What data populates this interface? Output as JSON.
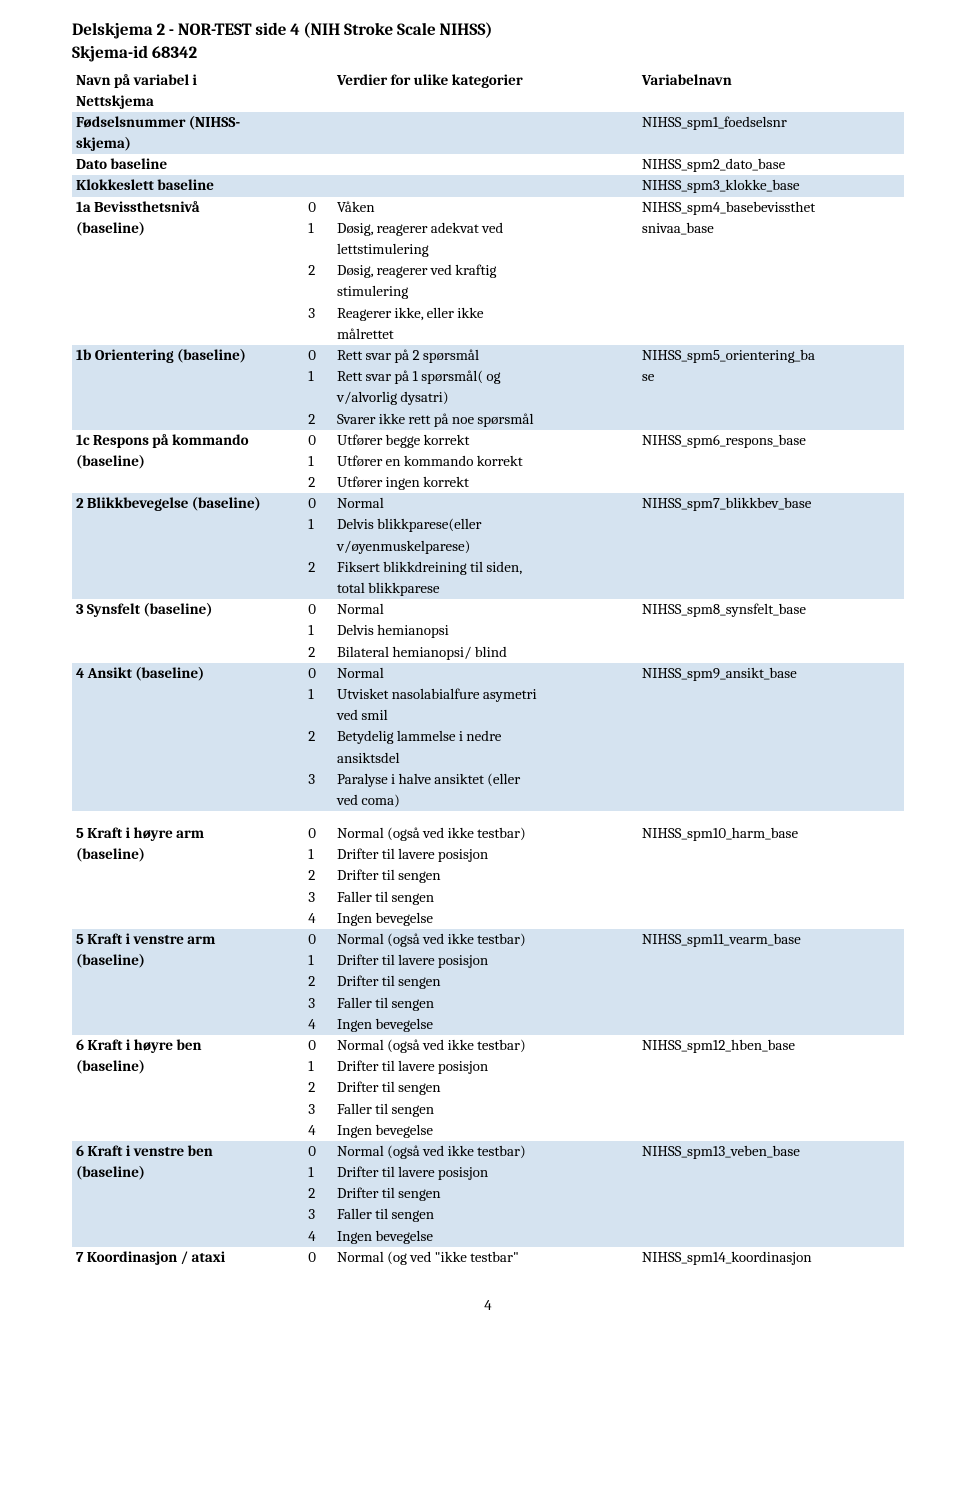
{
  "title": "Delskjema 2 -  NOR-TEST side 4 (NIH Stroke Scale NIHSS)",
  "subtitle": "Skjema-id 68342",
  "header": {
    "col1a": "Navn på variabel i",
    "col1b": "Nettskjema",
    "col2": "Verdier for ulike kategorier",
    "col3": "Variabelnavn"
  },
  "rows": [
    {
      "band": true,
      "c1": "Fødselsnummer (NIHSS-",
      "c2n": "",
      "c2t": "",
      "c3": "NIHSS_spm1_foedselsnr"
    },
    {
      "band": true,
      "c1": "skjema)",
      "c2n": "",
      "c2t": "",
      "c3": ""
    },
    {
      "band": false,
      "c1": "Dato baseline",
      "c2n": "",
      "c2t": "",
      "c3": "NIHSS_spm2_dato_base"
    },
    {
      "band": true,
      "c1": "Klokkeslett baseline",
      "c2n": "",
      "c2t": "",
      "c3": "NIHSS_spm3_klokke_base"
    },
    {
      "band": false,
      "c1": "1a Bevissthetsnivå",
      "c2n": "0",
      "c2t": "Våken",
      "c3": "NIHSS_spm4_basebevissthet"
    },
    {
      "band": false,
      "c1": "(baseline)",
      "c2n": "1",
      "c2t": "Døsig, reagerer adekvat ved",
      "c3": "snivaa_base"
    },
    {
      "band": false,
      "c1": "",
      "c2n": "",
      "c2t": "lettstimulering",
      "c3": ""
    },
    {
      "band": false,
      "c1": "",
      "c2n": "2",
      "c2t": "Døsig, reagerer ved kraftig",
      "c3": ""
    },
    {
      "band": false,
      "c1": "",
      "c2n": "",
      "c2t": "stimulering",
      "c3": ""
    },
    {
      "band": false,
      "c1": "",
      "c2n": "3",
      "c2t": "Reagerer ikke, eller ikke",
      "c3": ""
    },
    {
      "band": false,
      "c1": "",
      "c2n": "",
      "c2t": "målrettet",
      "c3": ""
    },
    {
      "band": true,
      "c1": "1b Orientering (baseline)",
      "c2n": "0",
      "c2t": "Rett svar på 2 spørsmål",
      "c3": "NIHSS_spm5_orientering_ba"
    },
    {
      "band": true,
      "c1": "",
      "c2n": "1",
      "c2t": "Rett svar på 1 spørsmål( og",
      "c3": "se"
    },
    {
      "band": true,
      "c1": "",
      "c2n": "",
      "c2t": "v/alvorlig dysatri)",
      "c3": ""
    },
    {
      "band": true,
      "c1": "",
      "c2n": "2",
      "c2t": "Svarer ikke rett på noe spørsmål",
      "c3": ""
    },
    {
      "band": false,
      "c1": "1c Respons på kommando",
      "c2n": "0",
      "c2t": "Utfører begge korrekt",
      "c3": "NIHSS_spm6_respons_base"
    },
    {
      "band": false,
      "c1": "(baseline)",
      "c2n": "1",
      "c2t": "Utfører en kommando korrekt",
      "c3": ""
    },
    {
      "band": false,
      "c1": "",
      "c2n": "2",
      "c2t": "Utfører ingen korrekt",
      "c3": ""
    },
    {
      "band": true,
      "c1": "2 Blikkbevegelse (baseline)",
      "c2n": "0",
      "c2t": "Normal",
      "c3": "NIHSS_spm7_blikkbev_base"
    },
    {
      "band": true,
      "c1": "",
      "c2n": "1",
      "c2t": "Delvis blikkparese(eller",
      "c3": ""
    },
    {
      "band": true,
      "c1": "",
      "c2n": "",
      "c2t": "v/øyenmuskelparese)",
      "c3": ""
    },
    {
      "band": true,
      "c1": "",
      "c2n": "2",
      "c2t": "Fiksert blikkdreining til siden,",
      "c3": ""
    },
    {
      "band": true,
      "c1": "",
      "c2n": "",
      "c2t": "total blikkparese",
      "c3": ""
    },
    {
      "band": false,
      "c1": "3 Synsfelt (baseline)",
      "c2n": "0",
      "c2t": "Normal",
      "c3": "NIHSS_spm8_synsfelt_base"
    },
    {
      "band": false,
      "c1": "",
      "c2n": "1",
      "c2t": "Delvis hemianopsi",
      "c3": ""
    },
    {
      "band": false,
      "c1": "",
      "c2n": "2",
      "c2t": "Bilateral hemianopsi/ blind",
      "c3": ""
    },
    {
      "band": true,
      "c1": "4 Ansikt (baseline)",
      "c2n": "0",
      "c2t": "Normal",
      "c3": "NIHSS_spm9_ansikt_base"
    },
    {
      "band": true,
      "c1": "",
      "c2n": "1",
      "c2t": "Utvisket nasolabialfure asymetri",
      "c3": "",
      "indentNum": true
    },
    {
      "band": true,
      "c1": "",
      "c2n": "",
      "c2t": "ved smil",
      "c3": ""
    },
    {
      "band": true,
      "c1": "",
      "c2n": "2",
      "c2t": "Betydelig lammelse i nedre",
      "c3": ""
    },
    {
      "band": true,
      "c1": "",
      "c2n": "",
      "c2t": "ansiktsdel",
      "c3": ""
    },
    {
      "band": true,
      "c1": "",
      "c2n": "3",
      "c2t": "Paralyse i halve ansiktet (eller",
      "c3": ""
    },
    {
      "band": true,
      "c1": "",
      "c2n": "",
      "c2t": "ved coma)",
      "c3": ""
    }
  ],
  "rows2": [
    {
      "band": false,
      "c1": "5 Kraft i høyre arm",
      "c2n": "0",
      "c2t": "Normal (også ved ikke testbar)",
      "c3": "NIHSS_spm10_harm_base"
    },
    {
      "band": false,
      "c1": "(baseline)",
      "c2n": "1",
      "c2t": "Drifter til lavere posisjon",
      "c3": ""
    },
    {
      "band": false,
      "c1": "",
      "c2n": "2",
      "c2t": "Drifter til sengen",
      "c3": ""
    },
    {
      "band": false,
      "c1": "",
      "c2n": "3",
      "c2t": "Faller til sengen",
      "c3": ""
    },
    {
      "band": false,
      "c1": "",
      "c2n": "4",
      "c2t": "Ingen bevegelse",
      "c3": ""
    },
    {
      "band": true,
      "c1": "5 Kraft i venstre arm",
      "c2n": "0",
      "c2t": "Normal (også ved ikke testbar)",
      "c3": "NIHSS_spm11_vearm_base"
    },
    {
      "band": true,
      "c1": "(baseline)",
      "c2n": "1",
      "c2t": "Drifter til lavere posisjon",
      "c3": ""
    },
    {
      "band": true,
      "c1": "",
      "c2n": "2",
      "c2t": "Drifter til sengen",
      "c3": ""
    },
    {
      "band": true,
      "c1": "",
      "c2n": "3",
      "c2t": "Faller til sengen",
      "c3": ""
    },
    {
      "band": true,
      "c1": "",
      "c2n": "4",
      "c2t": "Ingen bevegelse",
      "c3": ""
    },
    {
      "band": false,
      "c1": "6 Kraft i høyre ben",
      "c2n": "0",
      "c2t": "Normal (også ved ikke testbar)",
      "c3": "NIHSS_spm12_hben_base"
    },
    {
      "band": false,
      "c1": "(baseline)",
      "c2n": "1",
      "c2t": "Drifter til lavere posisjon",
      "c3": ""
    },
    {
      "band": false,
      "c1": "",
      "c2n": "2",
      "c2t": "Drifter til sengen",
      "c3": ""
    },
    {
      "band": false,
      "c1": "",
      "c2n": "3",
      "c2t": "Faller til sengen",
      "c3": ""
    },
    {
      "band": false,
      "c1": "",
      "c2n": "4",
      "c2t": "Ingen bevegelse",
      "c3": ""
    },
    {
      "band": true,
      "c1": "6 Kraft i venstre ben",
      "c2n": "0",
      "c2t": "Normal (også ved ikke testbar)",
      "c3": "NIHSS_spm13_veben_base"
    },
    {
      "band": true,
      "c1": "(baseline)",
      "c2n": "1",
      "c2t": "Drifter til lavere posisjon",
      "c3": ""
    },
    {
      "band": true,
      "c1": "",
      "c2n": "2",
      "c2t": "Drifter til sengen",
      "c3": ""
    },
    {
      "band": true,
      "c1": "",
      "c2n": "3",
      "c2t": "Faller til sengen",
      "c3": ""
    },
    {
      "band": true,
      "c1": "",
      "c2n": "4",
      "c2t": "Ingen bevegelse",
      "c3": ""
    },
    {
      "band": false,
      "c1": "7 Koordinasjon / ataxi",
      "c2n": "0",
      "c2t": "Normal (og ved \"ikke testbar\"",
      "c3": "NIHSS_spm14_koordinasjon"
    }
  ],
  "pageNumber": "4",
  "colors": {
    "band": "#d5e3f0",
    "text": "#000000",
    "bg": "#ffffff"
  },
  "layout": {
    "pageWidth": 960,
    "pageHeight": 1498,
    "col1Width": 225,
    "col2nWidth": 30,
    "col2tWidth": 298,
    "col3Width": 260,
    "fontSize": 15,
    "titleFontSize": 17
  }
}
